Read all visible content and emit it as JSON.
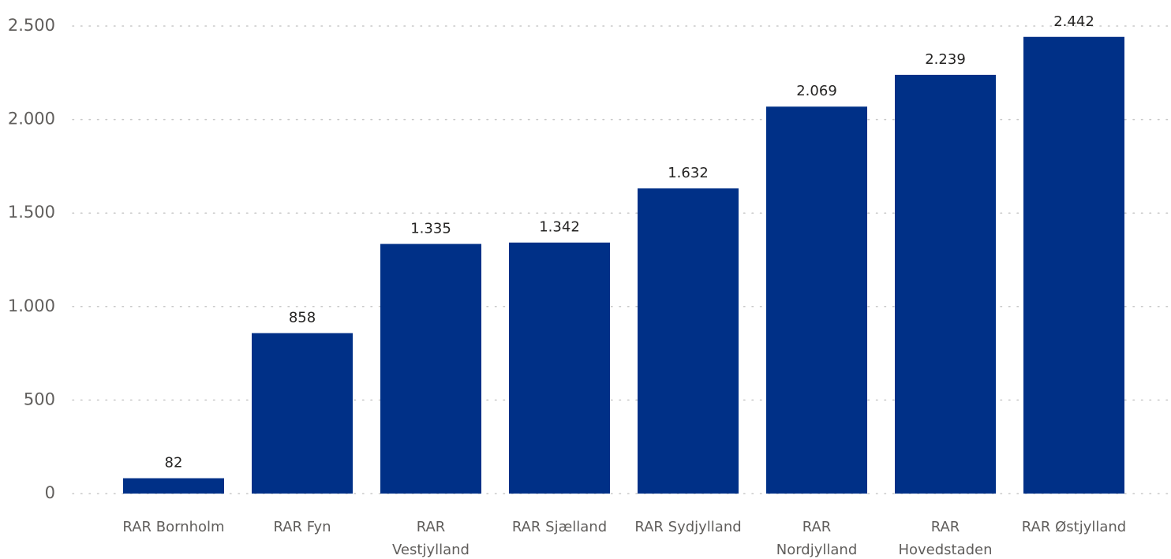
{
  "chart_data": {
    "type": "bar",
    "categories": [
      [
        "RAR Bornholm"
      ],
      [
        "RAR Fyn"
      ],
      [
        "RAR",
        "Vestjylland"
      ],
      [
        "RAR Sjælland"
      ],
      [
        "RAR Sydjylland"
      ],
      [
        "RAR",
        "Nordjylland"
      ],
      [
        "RAR",
        "Hovedstaden"
      ],
      [
        "RAR Østjylland"
      ]
    ],
    "values": [
      82,
      858,
      1335,
      1342,
      1632,
      2069,
      2239,
      2442
    ],
    "data_labels": [
      "82",
      "858",
      "1.335",
      "1.342",
      "1.632",
      "2.069",
      "2.239",
      "2.442"
    ],
    "yticks": [
      0,
      500,
      1000,
      1500,
      2000,
      2500
    ],
    "ytick_labels": [
      "0",
      "500",
      "1.000",
      "1.500",
      "2.000",
      "2.500"
    ],
    "ylim": [
      0,
      2500
    ],
    "grid": true,
    "bar_color": "#003087",
    "title": "",
    "xlabel": "",
    "ylabel": ""
  }
}
